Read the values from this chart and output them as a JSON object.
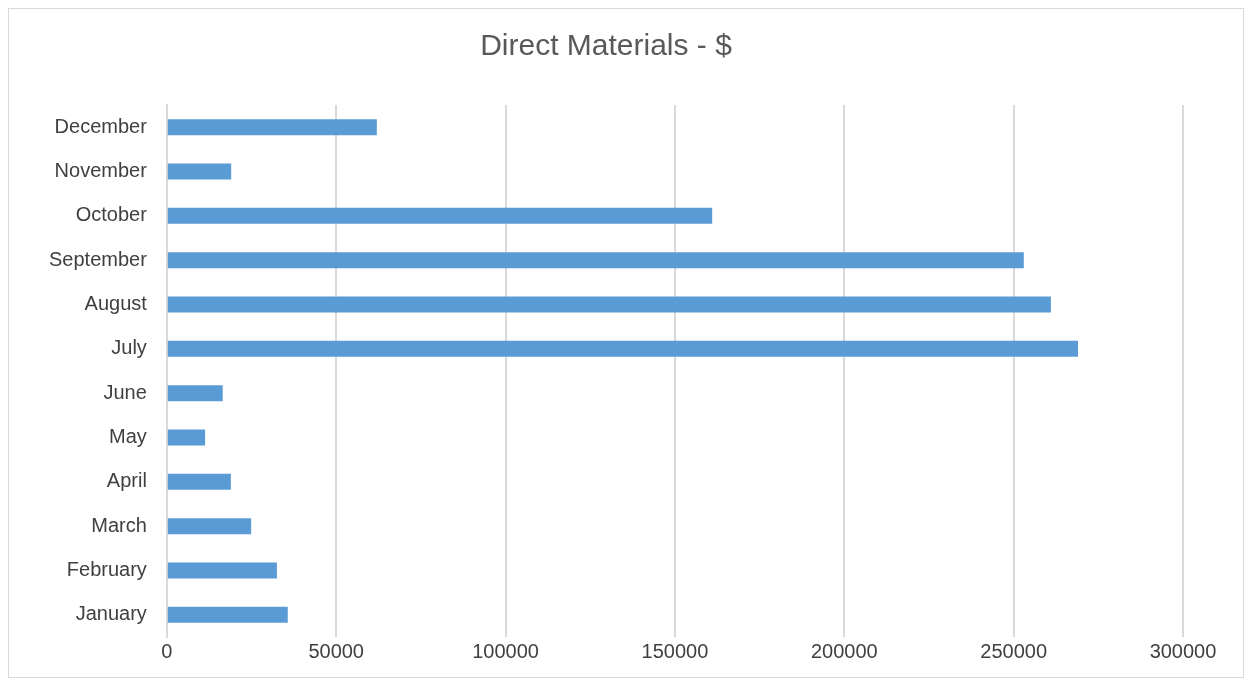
{
  "chart_data": {
    "type": "bar",
    "orientation": "horizontal",
    "title": "Direct Materials - $",
    "categories": [
      "December",
      "November",
      "October",
      "September",
      "August",
      "July",
      "June",
      "May",
      "April",
      "March",
      "February",
      "January"
    ],
    "values": [
      62000,
      19000,
      161000,
      253000,
      261000,
      269000,
      16500,
      11300,
      18900,
      24900,
      32500,
      35700
    ],
    "color": "#5b9bd5",
    "xlim": [
      0,
      300000
    ],
    "xticks": [
      0,
      50000,
      100000,
      150000,
      200000,
      250000,
      300000
    ],
    "grid": "x",
    "legend": false
  }
}
